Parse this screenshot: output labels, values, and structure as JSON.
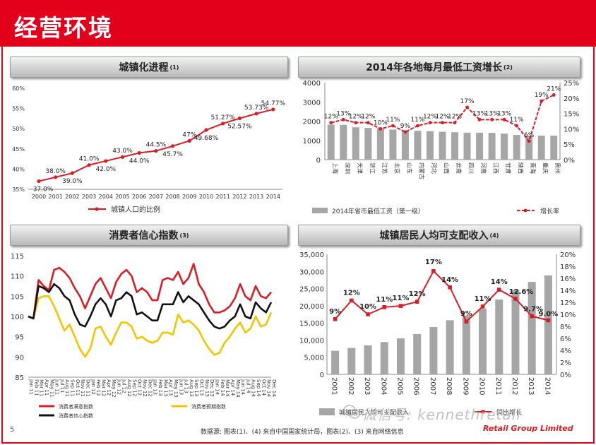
{
  "page": {
    "title": "经营环境",
    "page_number": "5",
    "source": "数据源: 图表(1)、(4) 来自中国国家统计局，图表(2)、(3) 来自网络信息",
    "brand": "Retail Group Limited",
    "watermark": "微信号: kennethretail"
  },
  "colors": {
    "red": "#d81e25",
    "gray_bar": "#a6a6a6",
    "yellow": "#f5c400",
    "black": "#111111"
  },
  "chart_data": [
    {
      "type": "line",
      "title": "城镇化进程",
      "footnote": "(1)",
      "categories": [
        "2000",
        "2001",
        "2002",
        "2003",
        "2004",
        "2005",
        "2006",
        "2007",
        "2008",
        "2009",
        "2010",
        "2011",
        "2012",
        "2013",
        "2014"
      ],
      "series": [
        {
          "name": "城镇人口的比例",
          "values": [
            37.0,
            38.0,
            39.0,
            41.0,
            42.0,
            43.0,
            44.0,
            44.5,
            45.7,
            47.0,
            49.68,
            51.27,
            52.57,
            53.73,
            54.77
          ]
        }
      ],
      "data_labels": [
        "37.0%",
        "38.0%",
        "39.0%",
        "41.0%",
        "42.0%",
        "43.0%",
        "44.0%",
        "44.5%",
        "45.7%",
        "47%",
        "49.68%",
        "51.27%",
        "52.57%",
        "53.73%",
        "54.77%"
      ],
      "ylim": [
        35,
        60
      ],
      "yticks": [
        "35%",
        "40%",
        "45%",
        "50%",
        "55%",
        "60%"
      ],
      "legend": "bottom"
    },
    {
      "type": "bar",
      "title": "2014年各地每月最低工资增长",
      "footnote": "(2)",
      "categories": [
        "上海",
        "深圳",
        "天津",
        "浙江",
        "江苏",
        "北京",
        "山东",
        "内蒙古",
        "河北",
        "山西",
        "云南",
        "四川",
        "河南",
        "江西",
        "甘肃",
        "陕西",
        "青海",
        "重庆",
        "贵州"
      ],
      "series": [
        {
          "name": "2014年省市最低工资（第一级）",
          "axis": "left",
          "values": [
            1820,
            1808,
            1680,
            1650,
            1630,
            1560,
            1500,
            1500,
            1480,
            1450,
            1420,
            1400,
            1400,
            1390,
            1350,
            1280,
            1250,
            1250,
            1250
          ]
        },
        {
          "name": "增长率",
          "axis": "right",
          "type": "line",
          "values": [
            12,
            13,
            12,
            12,
            10,
            11,
            9,
            11,
            12,
            12,
            12,
            17,
            13,
            13,
            13,
            11,
            6,
            19,
            21
          ]
        }
      ],
      "data_labels": [
        "12%",
        "13%",
        "12%",
        "12%",
        "10%",
        "11%",
        "9%",
        "11%",
        "12%",
        "12%",
        "12%",
        "17%",
        "13%",
        "13%",
        "13%",
        "11%",
        "6%",
        "19%",
        "21%"
      ],
      "ylim_left": [
        0,
        4000
      ],
      "yticks_left": [
        "0",
        "1000",
        "2000",
        "3000",
        "4000"
      ],
      "ylim_right": [
        0,
        25
      ],
      "yticks_right": [
        "0%",
        "5%",
        "10%",
        "15%",
        "20%",
        "25%"
      ],
      "legend": "bottom"
    },
    {
      "type": "line",
      "title": "消费者信心指数",
      "footnote": "(3)",
      "categories": [
        "Jan 11",
        "Feb 11",
        "Mar 11",
        "Apr 11",
        "May 11",
        "Jun 11",
        "Jul 11",
        "Aug 11",
        "Sep 11",
        "Oct 11",
        "Nov 11",
        "Dec 11",
        "Jan 12",
        "Feb 12",
        "Mar 12",
        "Apr 12",
        "May 12",
        "Jun 12",
        "Jul 12",
        "Aug 12",
        "Sep 12",
        "Oct 12",
        "Nov 12",
        "Dec 12",
        "Jan 13",
        "Feb 13",
        "Mar 13",
        "Apr 13",
        "May 13",
        "Jun 13",
        "Jul 13",
        "Aug 13",
        "Sep 13",
        "Oct 13",
        "Nov 13",
        "Dec 13",
        "Jan 14",
        "Feb 14",
        "Mar 14",
        "Apr 14",
        "May 14",
        "Jun 14",
        "Jul 14",
        "Aug 14",
        "Sep 14",
        "Oct 14",
        "Nov 14",
        "Dec 14"
      ],
      "series": [
        {
          "name": "消费者满意指数",
          "color": "#d81e25",
          "values": [
            100,
            99.5,
            109,
            107.5,
            106.5,
            111.5,
            112,
            111,
            109.5,
            107,
            105,
            102,
            105,
            108,
            109.5,
            107,
            104.5,
            108.5,
            110.5,
            111.5,
            110,
            106,
            107,
            106,
            104,
            104,
            109,
            109.5,
            109,
            111,
            108,
            109.5,
            113,
            108,
            106,
            103,
            101,
            101,
            101.5,
            102.5,
            104.5,
            108,
            105,
            104,
            107.5,
            105,
            104.5,
            106
          ]
        },
        {
          "name": "消费者信心指数",
          "color": "#111111",
          "values": [
            100,
            99.5,
            107.5,
            107,
            106,
            108,
            107,
            105,
            104,
            100.5,
            98,
            97.5,
            100,
            103,
            104.5,
            103,
            100,
            104,
            104.5,
            106,
            105,
            100.5,
            101,
            100,
            99,
            99,
            103,
            103,
            103,
            106,
            103.5,
            105,
            104,
            103,
            101,
            99,
            97.5,
            97,
            97.5,
            99,
            100,
            103,
            100,
            99.5,
            103.5,
            102,
            101,
            103.5
          ]
        },
        {
          "name": "消费者预期指数",
          "color": "#f5c400",
          "values": [
            100,
            99.5,
            104.5,
            105,
            105,
            102.5,
            99.5,
            96.5,
            98,
            95,
            92,
            90,
            92,
            97,
            97.5,
            95,
            93,
            96,
            98.5,
            98.5,
            97.5,
            94.5,
            95,
            94,
            93.5,
            94,
            96,
            96,
            95.5,
            100.5,
            98.5,
            99,
            98,
            96.5,
            94,
            92,
            90.5,
            91,
            93.5,
            95,
            97,
            98.5,
            96,
            97,
            100,
            97.5,
            98,
            101
          ]
        }
      ],
      "ylim": [
        85,
        115
      ],
      "yticks": [
        "85",
        "90",
        "95",
        "100",
        "105",
        "110",
        "115"
      ],
      "legend": "bottom"
    },
    {
      "type": "bar",
      "title": "城镇居民人均可支配收入",
      "footnote": "(4)",
      "categories": [
        "2001",
        "2002",
        "2003",
        "2004",
        "2005",
        "2006",
        "2007",
        "2008",
        "2009",
        "2010",
        "2011",
        "2012",
        "2013",
        "2014"
      ],
      "series": [
        {
          "name": "城镇居民人均可支配收入",
          "axis": "left",
          "values": [
            6860,
            7703,
            8472,
            9422,
            10493,
            11759,
            13786,
            15781,
            17175,
            19109,
            21810,
            24565,
            26955,
            28844
          ]
        },
        {
          "name": "同比增长",
          "axis": "right",
          "type": "line",
          "values": [
            9.2,
            12.3,
            10,
            11.2,
            11.4,
            12.1,
            17.2,
            14.5,
            8.8,
            11.3,
            14.1,
            12.6,
            9.7,
            9.0
          ]
        }
      ],
      "data_labels": [
        "9%",
        "12%",
        "10%",
        "11%",
        "11%",
        "12%",
        "17%",
        "14%",
        "9%",
        "11%",
        "14%",
        "12.6%",
        "9.7%",
        "9.0%"
      ],
      "ylim_left": [
        0,
        35000
      ],
      "yticks_left": [
        "0",
        "5,000",
        "10,000",
        "15,000",
        "20,000",
        "25,000",
        "30,000",
        "35,000"
      ],
      "ylim_right": [
        0,
        20
      ],
      "yticks_right": [
        "0%",
        "2%",
        "4%",
        "6%",
        "8%",
        "10%",
        "12%",
        "14%",
        "16%",
        "18%",
        "20%"
      ],
      "legend": "bottom"
    }
  ]
}
